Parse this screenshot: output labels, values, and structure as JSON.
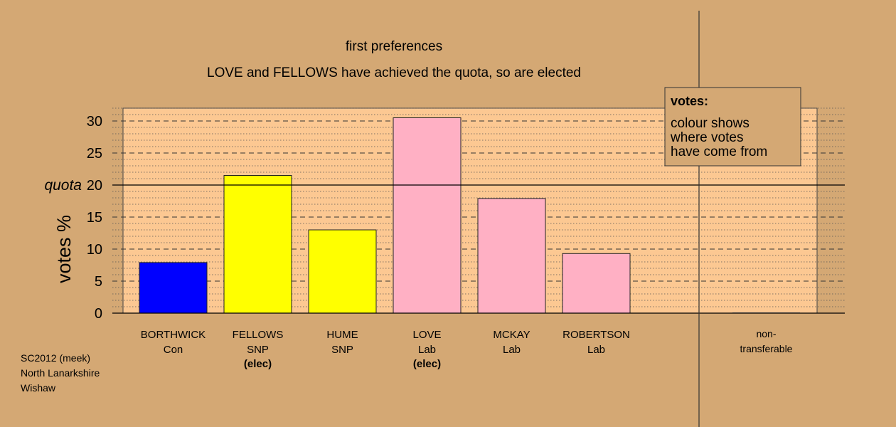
{
  "chart_data": {
    "type": "bar",
    "title": "first preferences",
    "subtitle": "LOVE and FELLOWS have achieved the quota, so are elected",
    "ylabel": "votes %",
    "ylim": [
      0,
      32
    ],
    "yticks": [
      0,
      5,
      10,
      15,
      20,
      25,
      30
    ],
    "quota_label": "quota",
    "quota_value": 20,
    "grid": true,
    "categories": [
      {
        "name": "BORTHWICK",
        "party": "Con",
        "note": "",
        "value": 7.9,
        "color": "#0000ff"
      },
      {
        "name": "FELLOWS",
        "party": "SNP",
        "note": "(elec)",
        "value": 21.5,
        "color": "#ffff00"
      },
      {
        "name": "HUME",
        "party": "SNP",
        "note": "",
        "value": 13.0,
        "color": "#ffff00"
      },
      {
        "name": "LOVE",
        "party": "Lab",
        "note": "(elec)",
        "value": 30.5,
        "color": "#ffb0c4"
      },
      {
        "name": "MCKAY",
        "party": "Lab",
        "note": "",
        "value": 17.9,
        "color": "#ffb0c4"
      },
      {
        "name": "ROBERTSON",
        "party": "Lab",
        "note": "",
        "value": 9.3,
        "color": "#ffb0c4"
      }
    ],
    "nontransferable": {
      "label_line1": "non-",
      "label_line2": "transferable",
      "value": 0
    },
    "legend": {
      "position": "top-right",
      "title": "votes:",
      "lines": [
        "colour shows",
        "where votes",
        "have come from"
      ]
    }
  },
  "footer": {
    "line1": "SC2012 (meek)",
    "line2": "North Lanarkshire",
    "line3": "Wishaw"
  },
  "colors": {
    "background": "#d4a874",
    "plot_background": "#fcc892"
  }
}
